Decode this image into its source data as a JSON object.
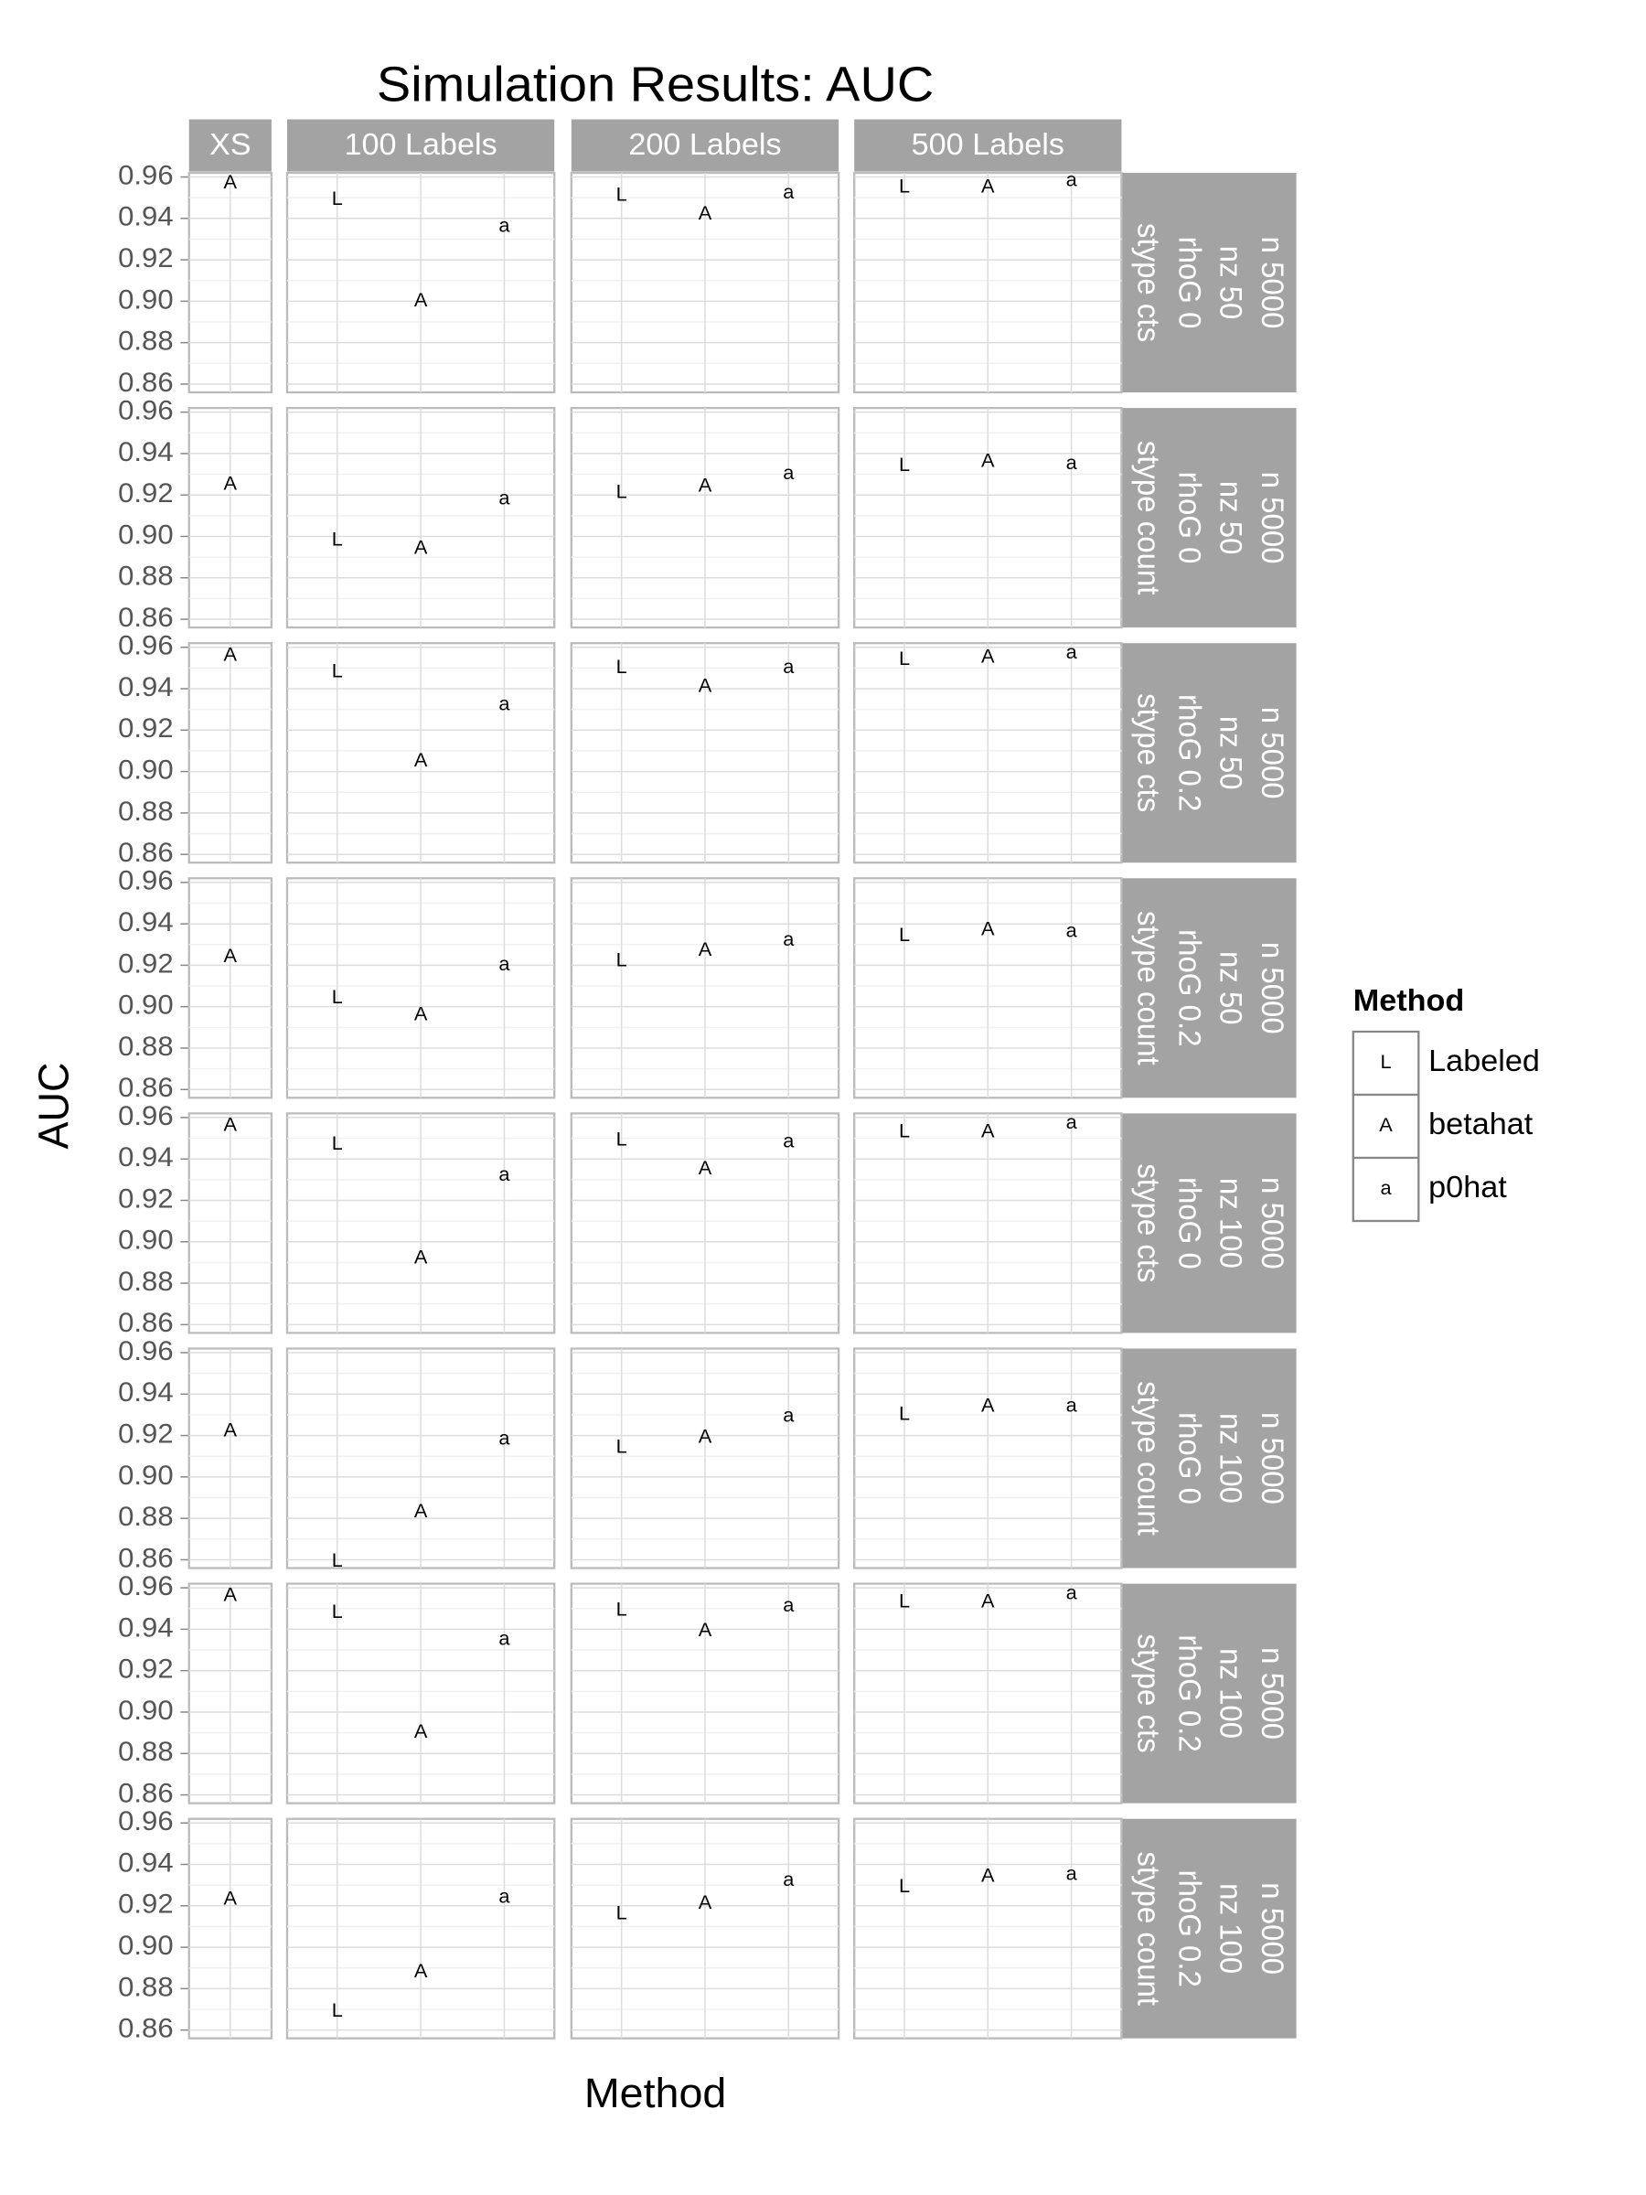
{
  "chart_data": {
    "type": "scatter",
    "title": "Simulation Results: AUC",
    "x_label": "Method",
    "y_label": "AUC",
    "legend_title": "Method",
    "columns": [
      "XS",
      "100 Labels",
      "200 Labels",
      "500 Labels"
    ],
    "rows": [
      [
        "n 5000",
        "nz 50",
        "rhoG 0",
        "stype cts"
      ],
      [
        "n 5000",
        "nz 50",
        "rhoG 0",
        "stype count"
      ],
      [
        "n 5000",
        "nz 50",
        "rhoG 0.2",
        "stype cts"
      ],
      [
        "n 5000",
        "nz 50",
        "rhoG 0.2",
        "stype count"
      ],
      [
        "n 5000",
        "nz 100",
        "rhoG 0",
        "stype cts"
      ],
      [
        "n 5000",
        "nz 100",
        "rhoG 0",
        "stype count"
      ],
      [
        "n 5000",
        "nz 100",
        "rhoG 0.2",
        "stype cts"
      ],
      [
        "n 5000",
        "nz 100",
        "rhoG 0.2",
        "stype count"
      ]
    ],
    "series": [
      {
        "name": "Labeled",
        "symbol": "L",
        "color": "#000000",
        "values": [
          [
            null,
            0.949,
            0.951,
            0.955
          ],
          [
            null,
            0.898,
            0.921,
            0.934
          ],
          [
            null,
            0.948,
            0.95,
            0.954
          ],
          [
            null,
            0.904,
            0.922,
            0.934
          ],
          [
            null,
            0.947,
            0.949,
            0.953
          ],
          [
            null,
            0.859,
            0.914,
            0.93
          ],
          [
            null,
            0.948,
            0.949,
            0.953
          ],
          [
            null,
            0.869,
            0.916,
            0.929
          ]
        ]
      },
      {
        "name": "betahat",
        "symbol": "A",
        "color": "#000000",
        "values": [
          [
            0.957,
            0.9,
            0.942,
            0.955
          ],
          [
            0.925,
            0.894,
            0.924,
            0.936
          ],
          [
            0.956,
            0.905,
            0.941,
            0.955
          ],
          [
            0.924,
            0.896,
            0.927,
            0.937
          ],
          [
            0.956,
            0.892,
            0.935,
            0.953
          ],
          [
            0.922,
            0.883,
            0.919,
            0.934
          ],
          [
            0.956,
            0.89,
            0.939,
            0.953
          ],
          [
            0.923,
            0.888,
            0.921,
            0.934
          ]
        ]
      },
      {
        "name": "p0hat",
        "symbol": "a",
        "color": "#000000",
        "values": [
          [
            null,
            0.936,
            0.952,
            0.958
          ],
          [
            null,
            0.918,
            0.93,
            0.935
          ],
          [
            null,
            0.932,
            0.95,
            0.957
          ],
          [
            null,
            0.92,
            0.932,
            0.936
          ],
          [
            null,
            0.932,
            0.948,
            0.957
          ],
          [
            null,
            0.918,
            0.929,
            0.934
          ],
          [
            null,
            0.935,
            0.951,
            0.957
          ],
          [
            null,
            0.924,
            0.932,
            0.935
          ]
        ]
      }
    ],
    "ylim": [
      0.856,
      0.962
    ],
    "yticks": [
      0.86,
      0.88,
      {
        "value": 0.9,
        "label": "0.90"
      },
      0.92,
      0.94,
      0.96
    ],
    "grid": true
  }
}
